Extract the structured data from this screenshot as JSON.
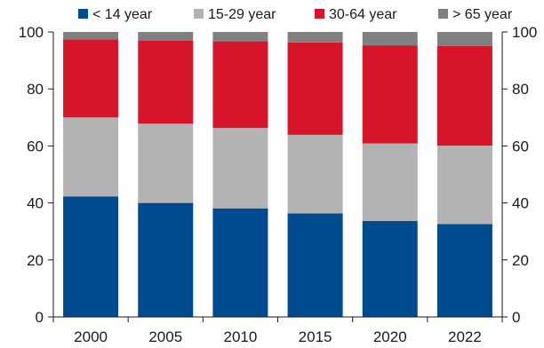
{
  "chart_data": {
    "type": "bar",
    "stacked": true,
    "categories": [
      "2000",
      "2005",
      "2010",
      "2015",
      "2020",
      "2022"
    ],
    "series": [
      {
        "name": "< 14 year",
        "color": "#004a8f",
        "values": [
          42.3,
          40.0,
          38.1,
          36.3,
          33.7,
          32.6
        ]
      },
      {
        "name": "15-29 year",
        "color": "#b3b3b3",
        "values": [
          27.7,
          27.8,
          28.2,
          27.6,
          27.2,
          27.5
        ]
      },
      {
        "name": "30-64 year",
        "color": "#d7152a",
        "values": [
          27.4,
          29.2,
          30.4,
          32.4,
          34.4,
          35.0
        ]
      },
      {
        "name": "> 65 year",
        "color": "#808080",
        "values": [
          2.6,
          3.0,
          3.3,
          3.7,
          4.7,
          4.9
        ]
      }
    ],
    "ylim": [
      0,
      100
    ],
    "yticks": [
      0,
      20,
      40,
      60,
      80,
      100
    ],
    "y_axis_sides": [
      "left",
      "right"
    ],
    "grid": false,
    "legend_position": "top",
    "title": "",
    "xlabel": "",
    "ylabel": ""
  }
}
